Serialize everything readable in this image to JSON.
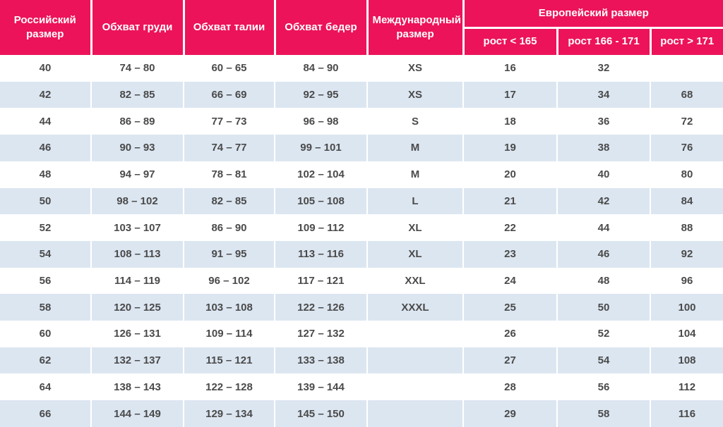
{
  "colors": {
    "header_bg": "#ec135a",
    "header_text": "#ffffff",
    "row_alt_bg": "#dce6f1",
    "body_text": "#4a4a4a"
  },
  "table": {
    "headers": {
      "russian_size": "Российский размер",
      "chest": "Обхват груди",
      "waist": "Обхват талии",
      "hips": "Обхват бедер",
      "international_size": "Международный размер",
      "european_size": "Европейский размер",
      "height_lt_165": "рост < 165",
      "height_166_171": "рост 166 - 171",
      "height_gt_171": "рост > 171"
    },
    "rows": [
      [
        "40",
        "74 – 80",
        "60 – 65",
        "84 – 90",
        "XS",
        "16",
        "32",
        ""
      ],
      [
        "42",
        "82 – 85",
        "66 – 69",
        "92 – 95",
        "XS",
        "17",
        "34",
        "68"
      ],
      [
        "44",
        "86 – 89",
        "77 – 73",
        "96 – 98",
        "S",
        "18",
        "36",
        "72"
      ],
      [
        "46",
        "90 – 93",
        "74 – 77",
        "99 – 101",
        "M",
        "19",
        "38",
        "76"
      ],
      [
        "48",
        "94 – 97",
        "78 – 81",
        "102 – 104",
        "M",
        "20",
        "40",
        "80"
      ],
      [
        "50",
        "98 – 102",
        "82 – 85",
        "105 – 108",
        "L",
        "21",
        "42",
        "84"
      ],
      [
        "52",
        "103 – 107",
        "86 – 90",
        "109 – 112",
        "XL",
        "22",
        "44",
        "88"
      ],
      [
        "54",
        "108 – 113",
        "91 – 95",
        "113 – 116",
        "XL",
        "23",
        "46",
        "92"
      ],
      [
        "56",
        "114 – 119",
        "96 – 102",
        "117 – 121",
        "XXL",
        "24",
        "48",
        "96"
      ],
      [
        "58",
        "120 – 125",
        "103 – 108",
        "122 – 126",
        "XXXL",
        "25",
        "50",
        "100"
      ],
      [
        "60",
        "126 – 131",
        "109 – 114",
        "127 – 132",
        "",
        "26",
        "52",
        "104"
      ],
      [
        "62",
        "132 – 137",
        "115 – 121",
        "133 – 138",
        "",
        "27",
        "54",
        "108"
      ],
      [
        "64",
        "138 – 143",
        "122 – 128",
        "139 – 144",
        "",
        "28",
        "56",
        "112"
      ],
      [
        "66",
        "144 – 149",
        "129 – 134",
        "145 – 150",
        "",
        "29",
        "58",
        "116"
      ]
    ]
  }
}
